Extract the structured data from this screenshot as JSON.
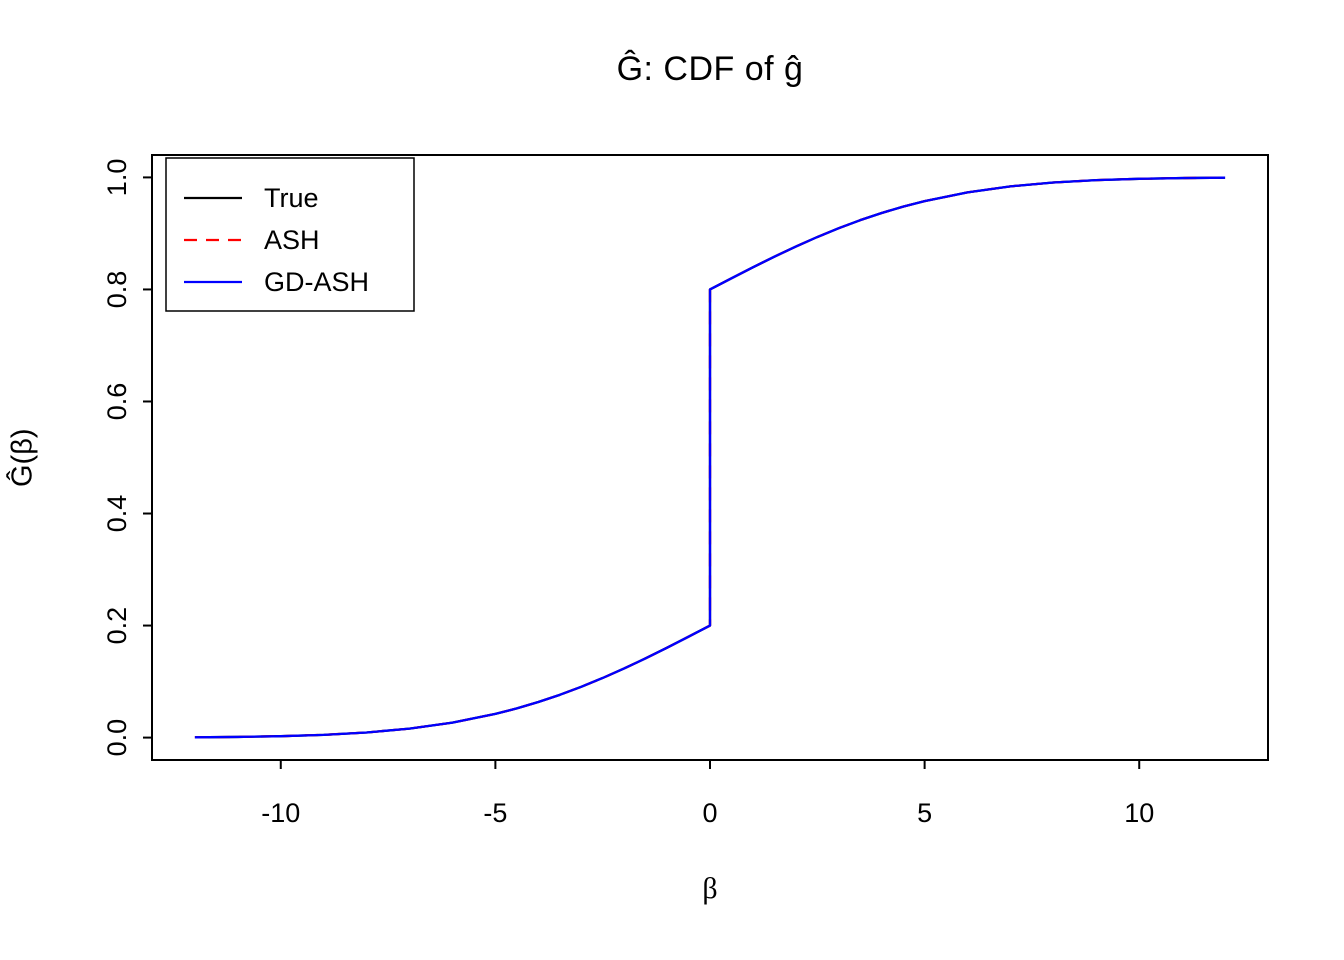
{
  "chart_data": {
    "type": "line",
    "title": "Ĝ: CDF of ĝ",
    "xlabel": "β",
    "ylabel": "Ĝ(β)",
    "xlim": [
      -13,
      13
    ],
    "ylim": [
      -0.04,
      1.04
    ],
    "x_ticks": [
      -10,
      -5,
      0,
      5,
      10
    ],
    "x_tick_labels": [
      "-10",
      "-5",
      "0",
      "5",
      "10"
    ],
    "y_ticks": [
      0.0,
      0.2,
      0.4,
      0.6,
      0.8,
      1.0
    ],
    "y_tick_labels": [
      "0.0",
      "0.2",
      "0.4",
      "0.6",
      "0.8",
      "1.0"
    ],
    "grid": false,
    "legend_position": "top-left",
    "curves_overlap": true,
    "x": [
      -12,
      -11,
      -10,
      -9,
      -8,
      -7,
      -6,
      -5,
      -4.5,
      -4,
      -3.5,
      -3,
      -2.5,
      -2,
      -1.5,
      -1,
      -0.5,
      0,
      0,
      0.5,
      1,
      1.5,
      2,
      2.5,
      3,
      3.5,
      4,
      4.5,
      5,
      6,
      7,
      8,
      9,
      10,
      11,
      12
    ],
    "y": [
      0.0005,
      0.0012,
      0.0025,
      0.0049,
      0.0091,
      0.016,
      0.0267,
      0.0423,
      0.0521,
      0.0635,
      0.0763,
      0.0907,
      0.1064,
      0.1234,
      0.1415,
      0.1605,
      0.1801,
      0.2,
      0.8,
      0.8199,
      0.8395,
      0.8585,
      0.8766,
      0.8936,
      0.9093,
      0.9237,
      0.9365,
      0.9479,
      0.9577,
      0.9733,
      0.984,
      0.9909,
      0.9951,
      0.9975,
      0.9988,
      0.9995
    ],
    "series": [
      {
        "name": "True",
        "color": "#000000",
        "style": "solid"
      },
      {
        "name": "ASH",
        "color": "#ff0000",
        "style": "dashed"
      },
      {
        "name": "GD-ASH",
        "color": "#0000ff",
        "style": "solid"
      }
    ]
  }
}
